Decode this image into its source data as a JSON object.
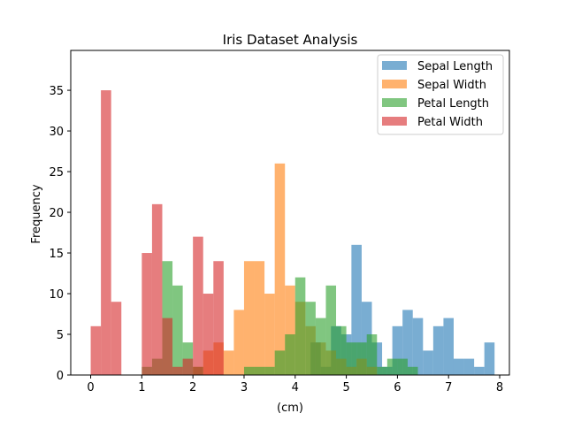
{
  "chart_data": {
    "type": "bar",
    "title": "Iris Dataset Analysis",
    "xlabel": "(cm)",
    "ylabel": "Frequency",
    "xlim": [
      -0.39,
      8.19
    ],
    "ylim": [
      0,
      39.9
    ],
    "x_ticks": [
      0,
      1,
      2,
      3,
      4,
      5,
      6,
      7,
      8
    ],
    "y_ticks": [
      0,
      5,
      10,
      15,
      20,
      25,
      30,
      35
    ],
    "grid": false,
    "legend_position": "top-right",
    "opacity": 0.6,
    "series": [
      {
        "name": "Sepal Length",
        "color": "#1f77b4",
        "bin_start": 4.3,
        "bin_width": 0.2,
        "values": [
          4,
          1,
          6,
          5,
          16,
          9,
          4,
          1,
          6,
          8,
          7,
          3,
          6,
          7,
          2,
          2,
          1,
          4
        ]
      },
      {
        "name": "Sepal Width",
        "color": "#ff7f0e",
        "bin_start": 2.0,
        "bin_width": 0.2,
        "values": [
          1,
          3,
          4,
          3,
          8,
          14,
          14,
          10,
          26,
          11,
          9,
          6,
          4,
          3,
          2,
          1,
          2,
          1
        ]
      },
      {
        "name": "Petal Length",
        "color": "#2ca02c",
        "bin_start": 1.0,
        "bin_width": 0.2,
        "values": [
          1,
          2,
          14,
          11,
          4,
          1,
          0,
          0,
          0,
          0,
          1,
          1,
          1,
          3,
          5,
          12,
          9,
          7,
          11,
          6,
          4,
          4,
          5,
          1,
          2,
          2,
          1,
          0,
          0
        ]
      },
      {
        "name": "Petal Width",
        "color": "#d62728",
        "bin_start": 0.0,
        "bin_width": 0.2,
        "values": [
          6,
          35,
          9,
          0,
          0,
          15,
          21,
          7,
          1,
          2,
          17,
          10,
          14
        ]
      }
    ]
  }
}
